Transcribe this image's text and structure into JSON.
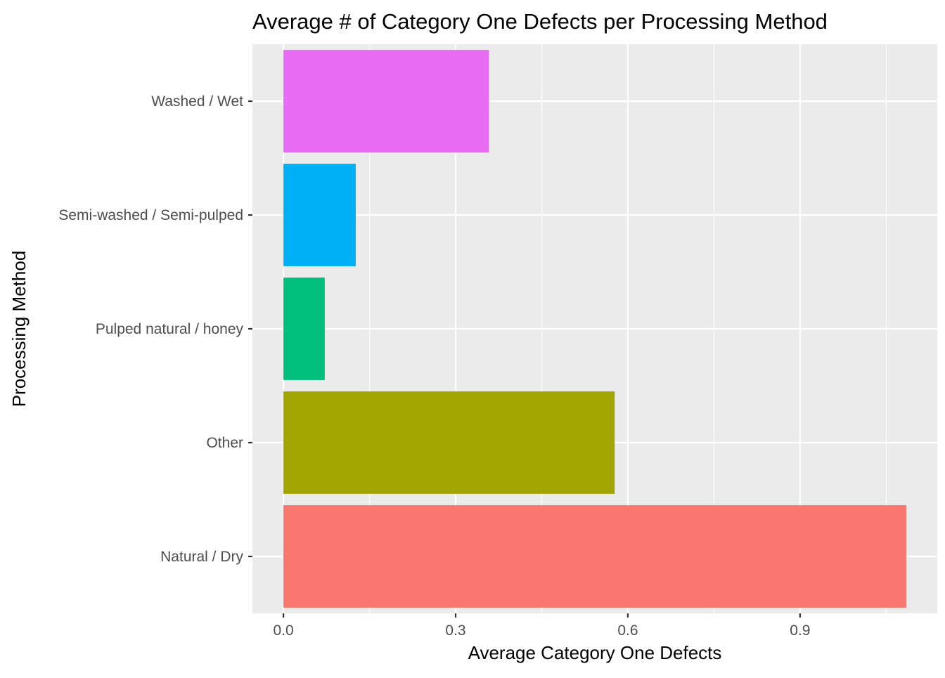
{
  "chart_data": {
    "type": "bar",
    "orientation": "horizontal",
    "title": "Average # of Category One Defects per Processing Method",
    "xlabel": "Average Category One Defects",
    "ylabel": "Processing Method",
    "categories": [
      "Natural / Dry",
      "Other",
      "Pulped natural / honey",
      "Semi-washed / Semi-pulped",
      "Washed / Wet"
    ],
    "values": [
      1.085,
      0.577,
      0.072,
      0.126,
      0.358
    ],
    "colors": [
      "#F8766D",
      "#A3A500",
      "#00BF7D",
      "#00B0F6",
      "#E76BF3"
    ],
    "xlim": [
      -0.054,
      1.139
    ],
    "x_ticks": [
      0.0,
      0.3,
      0.6,
      0.9
    ],
    "x_tick_labels": [
      "0.0",
      "0.3",
      "0.6",
      "0.9"
    ],
    "x_minor_ticks": [
      0.15,
      0.45,
      0.75,
      1.05
    ],
    "grid": true,
    "legend": "none",
    "panel_background": "#EBEBEB",
    "grid_color": "#FFFFFF"
  }
}
